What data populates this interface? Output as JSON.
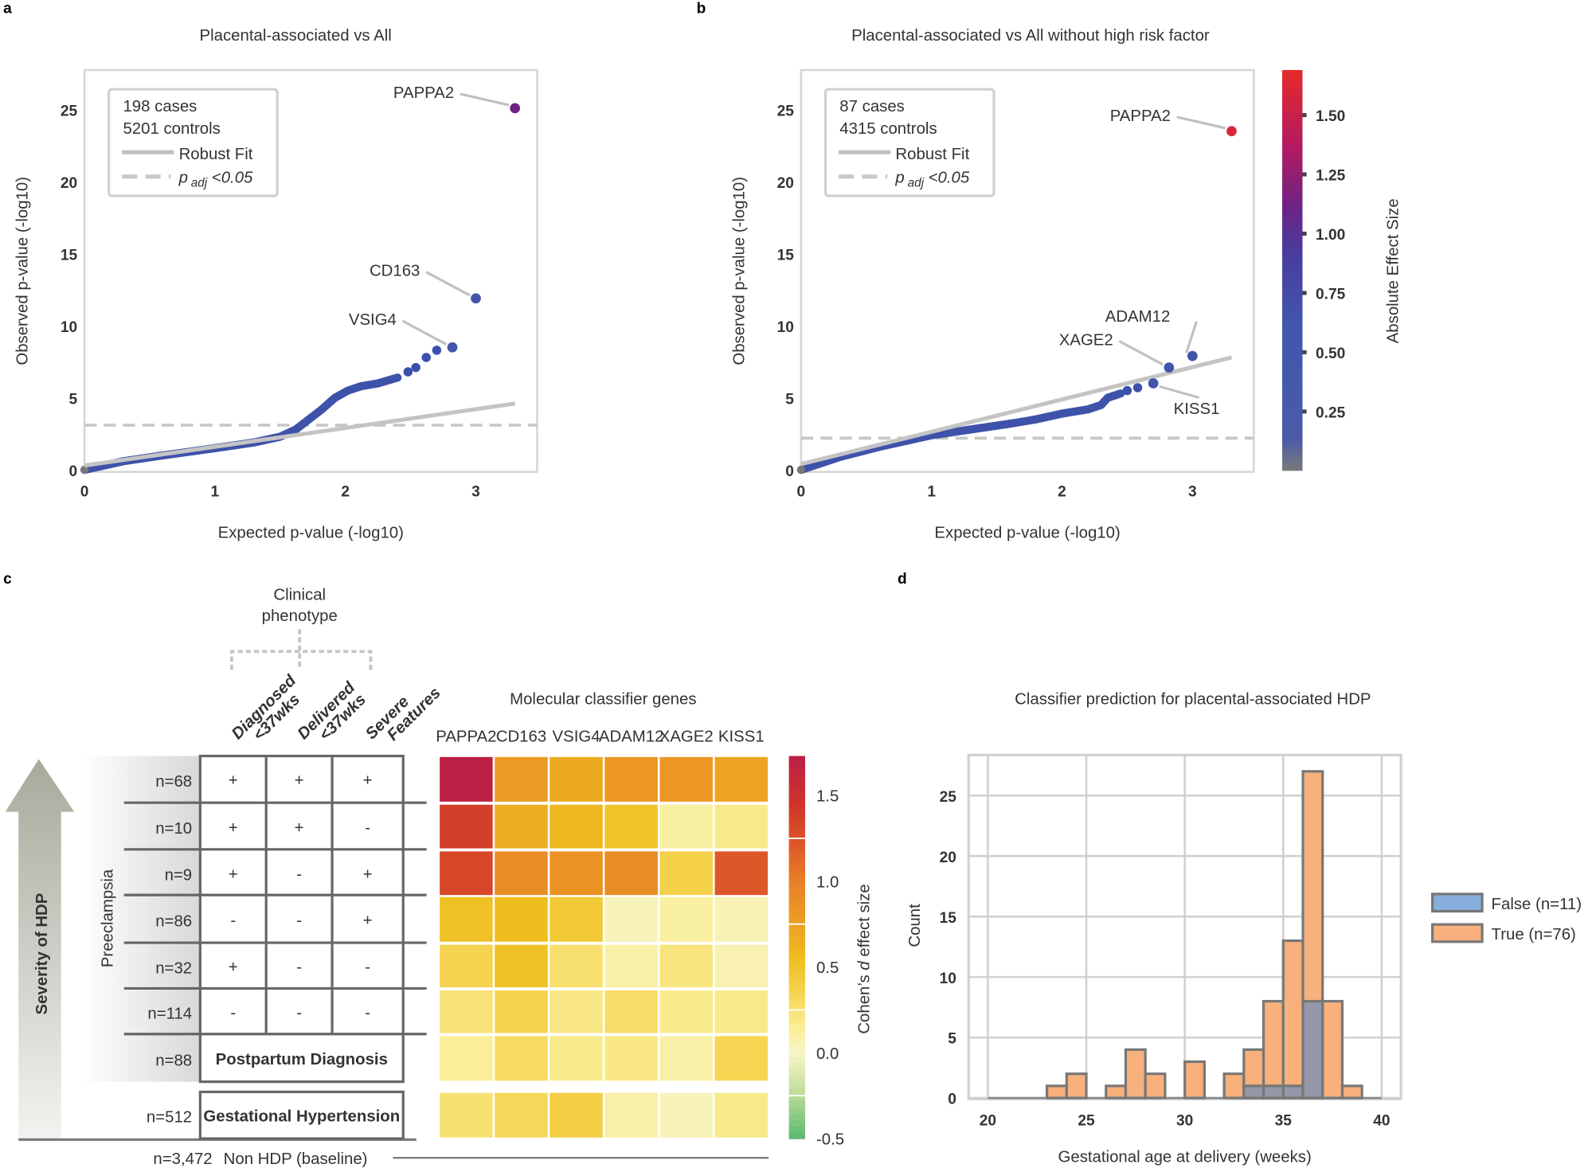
{
  "panel_letters": {
    "a": "a",
    "b": "b",
    "c": "c",
    "d": "d"
  },
  "chart_data": [
    {
      "panel": "a",
      "type": "scatter",
      "title": "Placental-associated vs All",
      "xlabel": "Expected p-value (-log10)",
      "ylabel": "Observed p-value (-log10)",
      "xlim": [
        0,
        3.47
      ],
      "ylim": [
        0,
        27.7
      ],
      "xticks": [
        "0",
        "1",
        "2",
        "3"
      ],
      "yticks": [
        "0",
        "5",
        "10",
        "15",
        "20",
        "25"
      ],
      "grid": false,
      "legend": {
        "cases": "198 cases",
        "controls": "5201 controls",
        "fit": "Robust Fit",
        "thr_p": "p",
        "thr_sub": "adj",
        "thr_rest": " <0.05",
        "placement": "top-left"
      },
      "threshold": 3.1,
      "robust_fit": {
        "x": [
          0,
          3.3
        ],
        "y": [
          0.3,
          4.6
        ]
      },
      "bulk_curve": {
        "x": [
          0,
          0.3,
          0.6,
          1.0,
          1.3,
          1.5,
          1.62,
          1.72,
          1.82,
          1.92,
          2.02,
          2.12,
          2.25,
          2.4
        ],
        "y": [
          0,
          0.6,
          1.0,
          1.5,
          1.9,
          2.3,
          2.8,
          3.5,
          4.2,
          5.0,
          5.5,
          5.8,
          6.0,
          6.4
        ]
      },
      "tail_points": [
        {
          "x": 2.48,
          "y": 6.8
        },
        {
          "x": 2.54,
          "y": 7.1
        },
        {
          "x": 2.62,
          "y": 7.8
        },
        {
          "x": 2.7,
          "y": 8.3
        }
      ],
      "labeled_points": [
        {
          "label": "PAPPA2",
          "x": 3.3,
          "y": 25.1,
          "effect": 1.0
        },
        {
          "label": "CD163",
          "x": 3.0,
          "y": 11.9,
          "effect": 0.45
        },
        {
          "label": "VSIG4",
          "x": 2.82,
          "y": 8.5,
          "effect": 0.45
        }
      ]
    },
    {
      "panel": "b",
      "type": "scatter",
      "title": "Placental-associated vs All without high risk factor",
      "xlabel": "Expected p-value (-log10)",
      "ylabel": "Observed p-value (-log10)",
      "xlim": [
        0,
        3.47
      ],
      "ylim": [
        0,
        27.7
      ],
      "xticks": [
        "0",
        "1",
        "2",
        "3"
      ],
      "yticks": [
        "0",
        "5",
        "10",
        "15",
        "20",
        "25"
      ],
      "grid": false,
      "legend": {
        "cases": "87 cases",
        "controls": "4315 controls",
        "fit": "Robust Fit",
        "thr_p": "p",
        "thr_sub": "adj",
        "thr_rest": " <0.05",
        "placement": "top-left"
      },
      "threshold": 2.2,
      "robust_fit": {
        "x": [
          0,
          3.3
        ],
        "y": [
          0.4,
          7.8
        ]
      },
      "bulk_curve": {
        "x": [
          0,
          0.3,
          0.6,
          1.0,
          1.3,
          1.6,
          1.8,
          2.0,
          2.2,
          2.3,
          2.35,
          2.45
        ],
        "y": [
          0,
          0.9,
          1.6,
          2.4,
          2.8,
          3.2,
          3.5,
          3.9,
          4.2,
          4.5,
          5.0,
          5.3
        ]
      },
      "tail_points": [
        {
          "x": 2.5,
          "y": 5.5
        },
        {
          "x": 2.58,
          "y": 5.7
        }
      ],
      "labeled_points": [
        {
          "label": "PAPPA2",
          "x": 3.3,
          "y": 23.5,
          "effect": 1.6
        },
        {
          "label": "ADAM12",
          "x": 3.0,
          "y": 7.9,
          "effect": 0.45
        },
        {
          "label": "XAGE2",
          "x": 2.82,
          "y": 7.1,
          "effect": 0.45
        },
        {
          "label": "KISS1",
          "x": 2.7,
          "y": 6.0,
          "effect": 0.45
        }
      ],
      "colorbar": {
        "label": "Absolute Effect Size",
        "range": [
          0,
          1.69
        ],
        "ticks": [
          "0.25",
          "0.50",
          "0.75",
          "1.00",
          "1.25",
          "1.50"
        ],
        "tick_values": [
          0.25,
          0.5,
          0.75,
          1.0,
          1.25,
          1.5
        ]
      }
    },
    {
      "panel": "c",
      "type": "heatmap",
      "title": "Molecular classifier genes",
      "columns": [
        "PAPPA2",
        "CD163",
        "VSIG4",
        "ADAM12",
        "XAGE2",
        "KISS1"
      ],
      "row_labels": [
        "n=68",
        "n=10",
        "n=9",
        "n=86",
        "n=32",
        "n=114",
        "n=88",
        "n=512"
      ],
      "values": [
        [
          1.7,
          0.78,
          0.68,
          0.82,
          0.82,
          0.72
        ],
        [
          1.38,
          0.66,
          0.6,
          0.5,
          0.12,
          0.18
        ],
        [
          1.32,
          0.9,
          0.85,
          0.9,
          0.38,
          1.22
        ],
        [
          0.52,
          0.55,
          0.45,
          0.04,
          0.12,
          0.06
        ],
        [
          0.36,
          0.52,
          0.26,
          0.1,
          0.22,
          0.07
        ],
        [
          0.24,
          0.36,
          0.2,
          0.28,
          0.18,
          0.18
        ],
        [
          0.14,
          0.3,
          0.18,
          0.2,
          0.1,
          0.34
        ],
        [
          0.25,
          0.32,
          0.4,
          0.1,
          0.04,
          0.18
        ]
      ],
      "colorbar": {
        "label_pre": "Cohen’s ",
        "label_d": "d",
        "label_post": " effect size",
        "range": [
          -0.5,
          1.73
        ],
        "ticks": [
          "1.5",
          "1.0",
          "0.5",
          "0.0",
          "-0.5"
        ],
        "tick_values": [
          1.5,
          1.0,
          0.5,
          0.0,
          -0.5
        ]
      }
    },
    {
      "panel": "d",
      "type": "bar",
      "title": "Classifier prediction for placental-associated HDP",
      "xlabel": "Gestational age at delivery (weeks)",
      "ylabel": "Count",
      "xlim": [
        19,
        41
      ],
      "ylim": [
        0,
        28.4
      ],
      "xticks": [
        "20",
        "25",
        "30",
        "35",
        "40"
      ],
      "yticks": [
        "0",
        "5",
        "10",
        "15",
        "20",
        "25"
      ],
      "grid": true,
      "bin_width": 1,
      "legend_placement": "right",
      "series": [
        {
          "name": "False (n=11)",
          "color": "#87aedc",
          "bins": [
            33,
            34,
            35,
            36
          ],
          "counts": [
            1,
            1,
            1,
            8
          ]
        },
        {
          "name": "True (n=76)",
          "color": "#f8b07c",
          "bins": [
            23,
            24,
            26,
            27,
            28,
            30,
            32,
            33,
            34,
            35,
            36,
            37,
            38
          ],
          "counts": [
            1,
            2,
            1,
            4,
            2,
            3,
            2,
            4,
            8,
            13,
            27,
            8,
            1
          ]
        }
      ]
    }
  ],
  "panel_c": {
    "clinical_title_1": "Clinical",
    "clinical_title_2": "phenotype",
    "phenotype_headers": [
      [
        "Diagnosed",
        "<37wks"
      ],
      [
        "Delivered",
        "<37wks"
      ],
      [
        "Severe",
        "Features"
      ]
    ],
    "severity_label": "Severity of HDP",
    "preeclampsia_label": "Preeclampsia",
    "phenotype_rows": [
      [
        "+",
        "+",
        "+"
      ],
      [
        "+",
        "+",
        "-"
      ],
      [
        "+",
        "-",
        "+"
      ],
      [
        "-",
        "-",
        "+"
      ],
      [
        "+",
        "-",
        "-"
      ],
      [
        "-",
        "-",
        "-"
      ]
    ],
    "postpartum_label": "Postpartum Diagnosis",
    "gestational_label": "Gestational Hypertension",
    "baseline_n": "n=3,472",
    "baseline_label": "Non HDP (baseline)"
  }
}
